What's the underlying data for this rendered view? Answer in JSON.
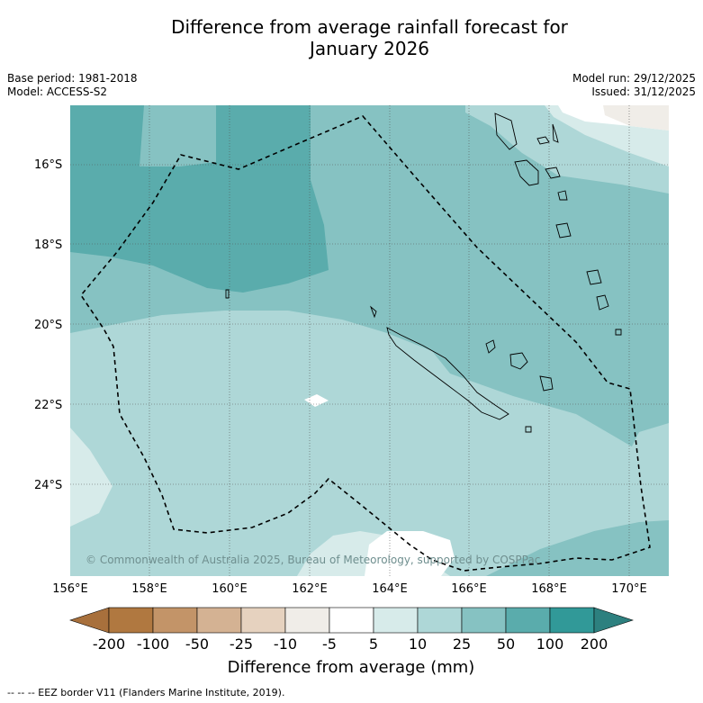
{
  "title_line1": "Difference from average rainfall forecast for",
  "title_line2": "January 2026",
  "base_period": "Base period: 1981-2018",
  "model": "Model: ACCESS-S2",
  "model_run": "Model run: 29/12/2025",
  "issued": "Issued: 31/12/2025",
  "lat_labels": [
    "16°S",
    "18°S",
    "20°S",
    "22°S",
    "24°S"
  ],
  "lon_labels": [
    "156°E",
    "158°E",
    "160°E",
    "162°E",
    "164°E",
    "166°E",
    "168°E",
    "170°E"
  ],
  "copyright": "© Commonwealth of Australia 2025, Bureau of Meteorology, supported by COSPPac",
  "colorbar": {
    "title": "Difference from average (mm)",
    "ticks": [
      "-200",
      "-100",
      "-50",
      "-25",
      "-10",
      "-5",
      "5",
      "10",
      "25",
      "50",
      "100",
      "200"
    ],
    "colors": [
      "#a8703c",
      "#b07840",
      "#c39468",
      "#d4b293",
      "#e6d2bf",
      "#f0ede8",
      "#ffffff",
      "#d7ebea",
      "#aed7d7",
      "#86c2c2",
      "#5aacac",
      "#319998",
      "#2d807f"
    ]
  },
  "footer": "--  --  -- EEZ border V11 (Flanders Marine Institute, 2019)."
}
